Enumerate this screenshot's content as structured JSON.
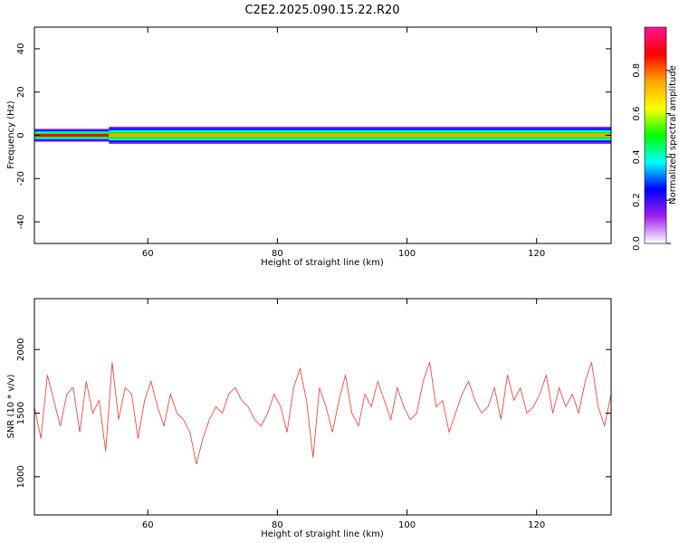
{
  "figure_title": "C2E2.2025.090.15.22.R20",
  "colors": {
    "snr_line": "#f03232",
    "axis": "#000000",
    "background": "#ffffff"
  },
  "chart_data": [
    {
      "type": "heatmap",
      "title": "C2E2.2025.090.15.22.R20",
      "xlabel": "Height of straight line (km)",
      "ylabel": "Frequency (Hz)",
      "xlim": [
        42.5,
        131.5
      ],
      "ylim": [
        -50,
        50
      ],
      "x_ticks": [
        "60",
        "80",
        "100",
        "120"
      ],
      "y_ticks": [
        "-40",
        "-20",
        "0",
        "20",
        "40"
      ],
      "x_tick_values": [
        60,
        80,
        100,
        120
      ],
      "y_tick_values": [
        -40,
        -20,
        0,
        20,
        40
      ],
      "grid": false,
      "band": {
        "center_frequency_hz": 0,
        "segments": [
          {
            "x_start": 42.5,
            "x_end": 54.0,
            "half_width_hz": 3,
            "peak_amplitude": 0.92
          },
          {
            "x_start": 54.0,
            "x_end": 131.5,
            "half_width_hz": 4,
            "peak_amplitude": 0.72
          }
        ]
      },
      "colorbar": {
        "label": "Normalized spectral amplitude",
        "range": [
          0.0,
          1.0
        ],
        "ticks": [
          "0.0",
          "0.2",
          "0.4",
          "0.6",
          "0.8"
        ],
        "tick_values": [
          0.0,
          0.2,
          0.4,
          0.6,
          0.8
        ],
        "stops": [
          "#ffffff",
          "#a020f0",
          "#0000ff",
          "#00ffff",
          "#00ff00",
          "#ffff00",
          "#ffa500",
          "#ff0000",
          "#ff1493"
        ]
      }
    },
    {
      "type": "line",
      "title": "",
      "xlabel": "Height of straight line (km)",
      "ylabel": "SNR (10 * v/v)",
      "xlim": [
        42.5,
        131.5
      ],
      "ylim": [
        700,
        2400
      ],
      "x_ticks": [
        "60",
        "80",
        "100",
        "120"
      ],
      "y_ticks": [
        "1000",
        "1500",
        "2000"
      ],
      "x_tick_values": [
        60,
        80,
        100,
        120
      ],
      "y_tick_values": [
        1000,
        1500,
        2000
      ],
      "grid": false,
      "series": [
        {
          "x": [
            42.5,
            43.5,
            44.5,
            45.5,
            46.5,
            47.5,
            48.5,
            49.5,
            50.5,
            51.5,
            52.5,
            53.5,
            54.5,
            55.5,
            56.5,
            57.5,
            58.5,
            59.5,
            60.5,
            61.5,
            62.5,
            63.5,
            64.5,
            65.5,
            66.5,
            67.5,
            68.5,
            69.5,
            70.5,
            71.5,
            72.5,
            73.5,
            74.5,
            75.5,
            76.5,
            77.5,
            78.5,
            79.5,
            80.5,
            81.5,
            82.5,
            83.5,
            84.5,
            85.5,
            86.5,
            87.5,
            88.5,
            89.5,
            90.5,
            91.5,
            92.5,
            93.5,
            94.5,
            95.5,
            96.5,
            97.5,
            98.5,
            99.5,
            100.5,
            101.5,
            102.5,
            103.5,
            104.5,
            105.5,
            106.5,
            107.5,
            108.5,
            109.5,
            110.5,
            111.5,
            112.5,
            113.5,
            114.5,
            115.5,
            116.5,
            117.5,
            118.5,
            119.5,
            120.5,
            121.5,
            122.5,
            123.5,
            124.5,
            125.5,
            126.5,
            127.5,
            128.5,
            129.5,
            130.5,
            131.5
          ],
          "y": [
            1550,
            1300,
            1800,
            1600,
            1400,
            1650,
            1700,
            1350,
            1750,
            1500,
            1600,
            1200,
            1900,
            1450,
            1700,
            1650,
            1300,
            1600,
            1750,
            1550,
            1400,
            1650,
            1500,
            1450,
            1350,
            1100,
            1300,
            1450,
            1550,
            1500,
            1650,
            1700,
            1600,
            1550,
            1450,
            1400,
            1500,
            1650,
            1550,
            1350,
            1700,
            1850,
            1600,
            1150,
            1700,
            1550,
            1350,
            1600,
            1800,
            1500,
            1400,
            1650,
            1550,
            1750,
            1600,
            1450,
            1700,
            1550,
            1450,
            1500,
            1750,
            1900,
            1550,
            1600,
            1350,
            1500,
            1650,
            1750,
            1600,
            1500,
            1550,
            1700,
            1450,
            1800,
            1600,
            1700,
            1500,
            1550,
            1650,
            1800,
            1500,
            1700,
            1550,
            1650,
            1500,
            1750,
            1900,
            1550,
            1400,
            1650
          ]
        }
      ]
    }
  ]
}
